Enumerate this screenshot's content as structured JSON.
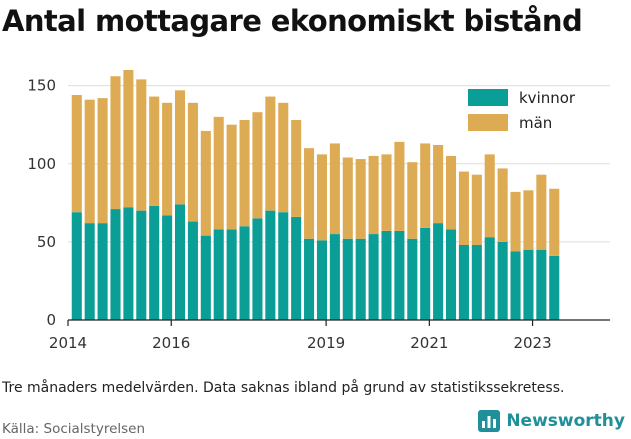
{
  "title": "Antal mottagare ekonomiskt bistånd",
  "caption": "Tre månaders medelvärden. Data saknas ibland på grund av statistikssekretess.",
  "source": "Källa: Socialstyrelsen",
  "brand": {
    "name": "Newsworthy",
    "icon": "bar-chart-logo-icon",
    "color": "#1f8f99"
  },
  "colors": {
    "kvinnor": "#0a9e96",
    "man": "#deab55",
    "grid": "#dddddd",
    "axis": "#222222"
  },
  "chart_data": {
    "type": "bar",
    "stacked": true,
    "title": "Antal mottagare ekonomiskt bistånd",
    "xlabel": "",
    "ylabel": "",
    "ylim": [
      0,
      160
    ],
    "xlim": [
      2014.0,
      2024.5
    ],
    "yticks": [
      0,
      50,
      100,
      150
    ],
    "xticks": [
      "2014",
      "2016",
      "2019",
      "2021",
      "2023"
    ],
    "grid": true,
    "legend_position": "top-right",
    "x": [
      2014.17,
      2014.42,
      2014.67,
      2014.92,
      2015.17,
      2015.42,
      2015.67,
      2015.92,
      2016.17,
      2016.42,
      2016.67,
      2016.92,
      2017.17,
      2017.42,
      2017.67,
      2017.92,
      2018.17,
      2018.42,
      2018.67,
      2018.92,
      2019.17,
      2019.42,
      2019.67,
      2019.92,
      2020.17,
      2020.42,
      2020.67,
      2020.92,
      2021.17,
      2021.42,
      2021.67,
      2021.92,
      2022.17,
      2022.42,
      2022.67,
      2022.92,
      2023.17,
      2023.42,
      2023.67
    ],
    "series": [
      {
        "name": "kvinnor",
        "values": [
          69,
          62,
          62,
          71,
          72,
          70,
          73,
          67,
          74,
          63,
          54,
          58,
          58,
          60,
          65,
          70,
          69,
          66,
          52,
          51,
          55,
          52,
          52,
          55,
          57,
          57,
          52,
          59,
          62,
          58,
          48,
          48,
          53,
          50,
          44,
          45,
          45,
          41,
          0
        ]
      },
      {
        "name": "män",
        "values": [
          75,
          79,
          80,
          85,
          88,
          84,
          70,
          72,
          73,
          76,
          67,
          72,
          67,
          68,
          68,
          73,
          70,
          62,
          58,
          55,
          58,
          52,
          51,
          50,
          49,
          57,
          49,
          54,
          50,
          47,
          47,
          45,
          53,
          47,
          38,
          38,
          48,
          43,
          0
        ]
      }
    ]
  }
}
